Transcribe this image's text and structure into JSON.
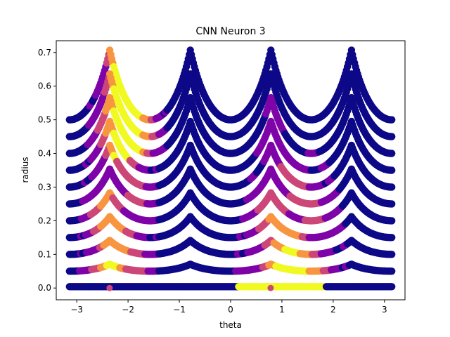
{
  "chart_data": {
    "type": "scatter",
    "title": "CNN Neuron 3",
    "xlabel": "theta",
    "ylabel": "radius",
    "xlim": [
      -3.4,
      3.4
    ],
    "ylim": [
      -0.035,
      0.735
    ],
    "xticks": [
      -3,
      -2,
      -1,
      0,
      1,
      2,
      3
    ],
    "yticks": [
      0.0,
      0.1,
      0.2,
      0.3,
      0.4,
      0.5,
      0.6,
      0.7
    ],
    "xtick_labels": [
      "−3",
      "−2",
      "−1",
      "0",
      "1",
      "2",
      "3"
    ],
    "ytick_labels": [
      "0.0",
      "0.1",
      "0.2",
      "0.3",
      "0.4",
      "0.5",
      "0.6",
      "0.7"
    ],
    "grid": false,
    "legend": "none",
    "colormap": "plasma",
    "colors": {
      "low": "#0d0887",
      "mid_low": "#7e03a8",
      "mid": "#cc4778",
      "mid_high": "#f89540",
      "high": "#f0f921"
    },
    "curves": {
      "description_levels": "square rings of half-width r: radius = r / max(|cos θ|, |sin θ|)",
      "ring_half_widths": [
        0.0,
        0.05,
        0.1,
        0.15,
        0.2,
        0.25,
        0.3,
        0.35,
        0.4,
        0.45,
        0.5
      ],
      "theta_range": [
        -3.14159,
        3.14159
      ],
      "peak_thetas": [
        -2.356,
        -0.785,
        0.785,
        2.356
      ],
      "peak_radius": 0.707
    },
    "highlight_points": [
      {
        "theta": -2.36,
        "radius": 0.0
      },
      {
        "theta": 0.78,
        "radius": 0.0
      }
    ]
  }
}
